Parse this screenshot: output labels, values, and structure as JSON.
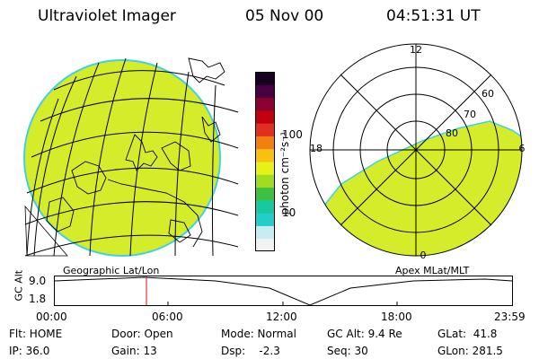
{
  "header": {
    "title": "Ultraviolet Imager",
    "date": "05 Nov 00",
    "time": "04:51:31 UT"
  },
  "colorbar": {
    "unit_label": "photon cm⁻²s⁻¹",
    "ticks": [
      "100",
      "10"
    ],
    "colors": [
      "#f2f2f2",
      "#c8ecf2",
      "#20d0c8",
      "#18c8a0",
      "#40c040",
      "#a0dc20",
      "#e8f01a",
      "#f8c010",
      "#f08010",
      "#e03020",
      "#c00010",
      "#8a0030",
      "#4a0040",
      "#180020"
    ]
  },
  "geo_panel": {
    "label": "Geographic Lat/Lon",
    "land_color": "#d4ec2a",
    "edge_color": "#40d0e8"
  },
  "polar_panel": {
    "label": "Apex MLat/MLT",
    "mlt_labels": {
      "top": "12",
      "left": "18",
      "right": "6",
      "bottom": "0"
    },
    "lat_labels": [
      "60",
      "70",
      "80"
    ]
  },
  "altitude_plot": {
    "ylabel": "GC Alt",
    "ytick_high": "9.0",
    "ytick_low": "1.8",
    "xticks": [
      "00:00",
      "06:00",
      "12:00",
      "18:00",
      "23:59"
    ],
    "marker_color": "#e01010"
  },
  "info": {
    "flt": "Flt: HOME",
    "ip": "IP: 36.0",
    "door": "Door: Open",
    "gain": "Gain: 13",
    "mode": "Mode: Normal",
    "dsp": "Dsp:    -2.3",
    "gc_alt": "GC Alt: 9.4 Re",
    "seq": "Seq: 30",
    "glat": "GLat:  41.8",
    "glon": "GLon: 281.5"
  }
}
